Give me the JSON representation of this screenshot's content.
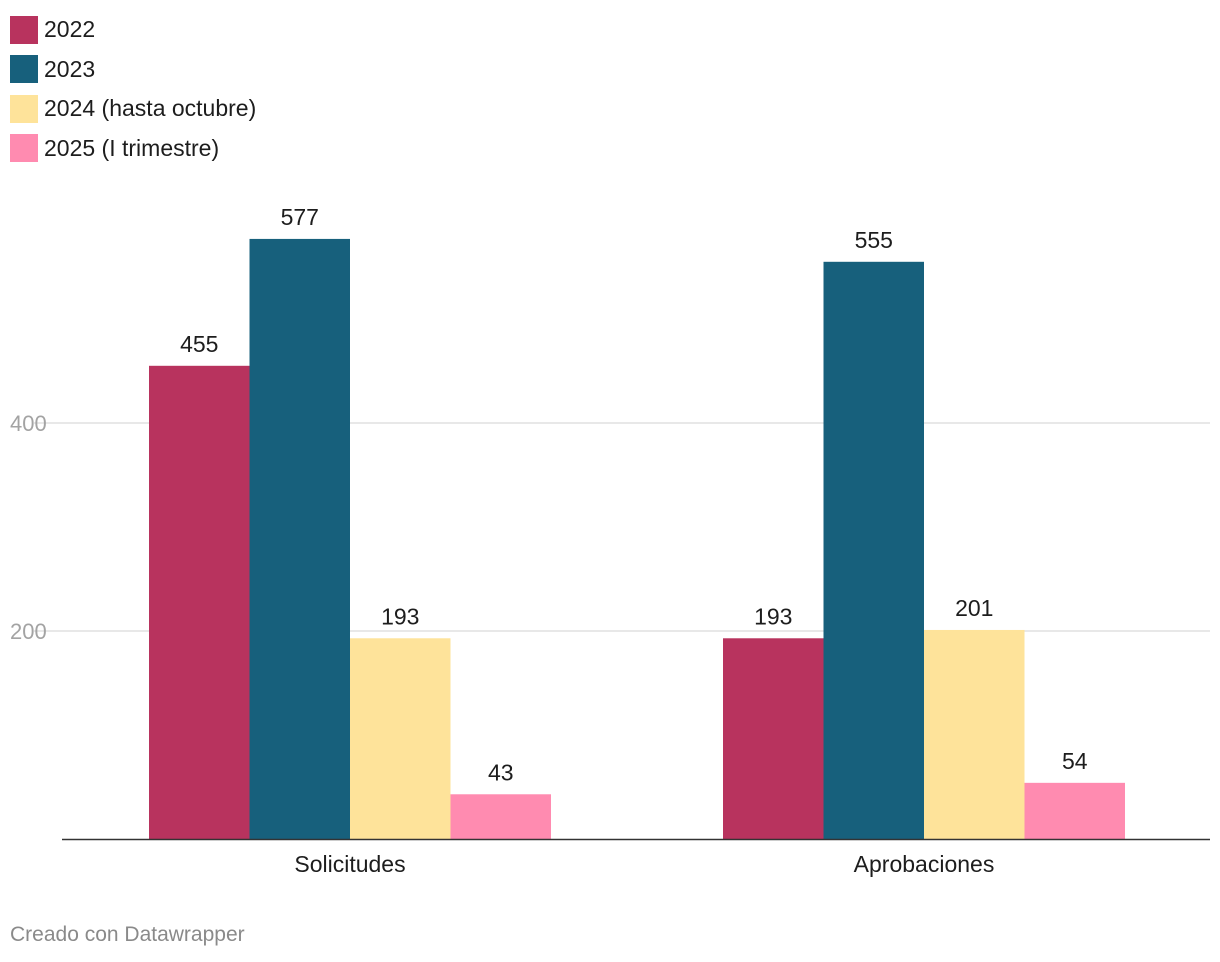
{
  "credit": "Creado con Datawrapper",
  "chart_data": {
    "type": "bar",
    "title": "",
    "xlabel": "",
    "ylabel": "",
    "categories": [
      "Solicitudes",
      "Aprobaciones"
    ],
    "series": [
      {
        "name": "2022",
        "color": "#b8335e",
        "values": [
          455,
          193
        ]
      },
      {
        "name": "2023",
        "color": "#17607c",
        "values": [
          577,
          555
        ]
      },
      {
        "name": "2024 (hasta octubre)",
        "color": "#fee39a",
        "values": [
          193,
          201
        ]
      },
      {
        "name": "2025 (I trimestre)",
        "color": "#ff8bb0",
        "values": [
          43,
          54
        ]
      }
    ],
    "ylim": [
      0,
      600
    ],
    "yticks": [
      200,
      400
    ],
    "grid": true,
    "legend": "top-left",
    "data_labels": true
  }
}
